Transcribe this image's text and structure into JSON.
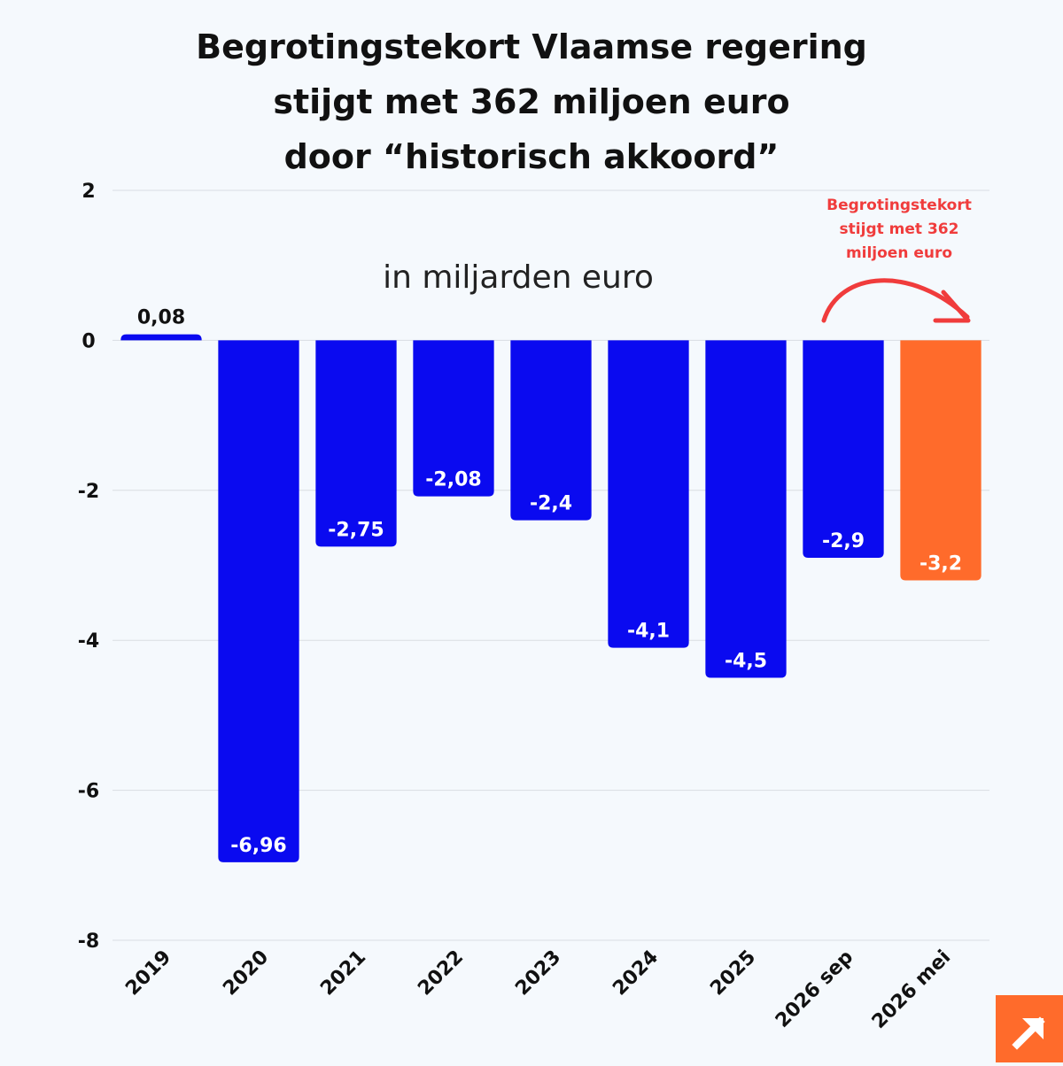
{
  "title_lines": [
    "Begrotingstekort Vlaamse regering",
    "stijgt met 362 miljoen euro",
    "door “historisch akkoord”"
  ],
  "colors": {
    "primary_bar": "#0a0af0",
    "highlight_bar": "#ff6b2b",
    "annotation": "#f03c3c",
    "grid": "#d9dde2",
    "background": "#f5f9fd"
  },
  "chart_data": {
    "type": "bar",
    "subtitle": "in miljarden euro",
    "categories": [
      "2019",
      "2020",
      "2021",
      "2022",
      "2023",
      "2024",
      "2025",
      "2026 sep",
      "2026 mei"
    ],
    "values": [
      0.08,
      -6.96,
      -2.75,
      -2.08,
      -2.4,
      -4.1,
      -4.5,
      -2.9,
      -3.2
    ],
    "value_labels": [
      "0,08",
      "-6,96",
      "-2,75",
      "-2,08",
      "-2,4",
      "-4,1",
      "-4,5",
      "-2,9",
      "-3,2"
    ],
    "highlight_index": 8,
    "ylim": [
      -8,
      2
    ],
    "yticks": [
      2,
      0,
      -2,
      -4,
      -6,
      -8
    ],
    "xlabel": "",
    "ylabel": "",
    "grid": true,
    "annotation": {
      "lines": [
        "Begrotingstekort",
        "stijgt met 362",
        "miljoen euro"
      ],
      "arrow": "curved arrow from 2026 sep to 2026 mei"
    }
  },
  "logo": {
    "icon": "arrow-up-right-icon"
  }
}
